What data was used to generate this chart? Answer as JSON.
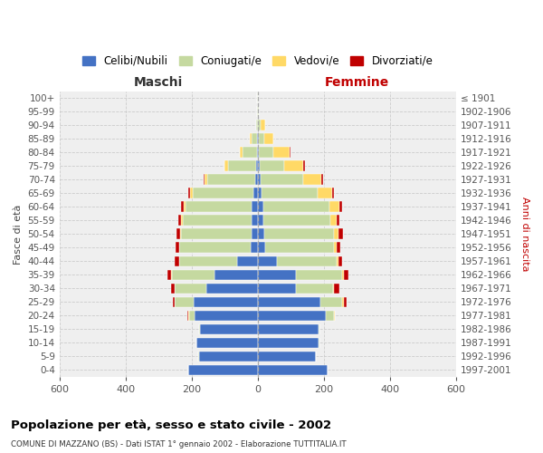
{
  "age_groups": [
    "0-4",
    "5-9",
    "10-14",
    "15-19",
    "20-24",
    "25-29",
    "30-34",
    "35-39",
    "40-44",
    "45-49",
    "50-54",
    "55-59",
    "60-64",
    "65-69",
    "70-74",
    "75-79",
    "80-84",
    "85-89",
    "90-94",
    "95-99",
    "100+"
  ],
  "birth_years": [
    "1997-2001",
    "1992-1996",
    "1987-1991",
    "1982-1986",
    "1977-1981",
    "1972-1976",
    "1967-1971",
    "1962-1966",
    "1957-1961",
    "1952-1956",
    "1947-1951",
    "1942-1946",
    "1937-1941",
    "1932-1936",
    "1927-1931",
    "1922-1926",
    "1917-1921",
    "1912-1916",
    "1907-1911",
    "1902-1906",
    "≤ 1901"
  ],
  "males_celibi": [
    210,
    178,
    185,
    175,
    190,
    195,
    155,
    130,
    62,
    22,
    18,
    18,
    18,
    12,
    8,
    5,
    3,
    2,
    0,
    0,
    0
  ],
  "males_coniugati": [
    0,
    2,
    2,
    2,
    18,
    55,
    95,
    130,
    175,
    215,
    215,
    210,
    200,
    185,
    145,
    85,
    42,
    18,
    4,
    1,
    1
  ],
  "males_vedovi": [
    0,
    0,
    0,
    0,
    2,
    2,
    2,
    2,
    2,
    2,
    2,
    4,
    5,
    8,
    8,
    10,
    10,
    5,
    2,
    0,
    0
  ],
  "males_divorziati": [
    0,
    0,
    0,
    0,
    2,
    5,
    10,
    10,
    12,
    10,
    10,
    8,
    8,
    5,
    2,
    2,
    0,
    0,
    0,
    0,
    0
  ],
  "females_nubili": [
    210,
    175,
    185,
    185,
    205,
    190,
    115,
    115,
    58,
    22,
    20,
    18,
    18,
    12,
    8,
    5,
    2,
    2,
    0,
    0,
    0
  ],
  "females_coniugate": [
    0,
    2,
    2,
    2,
    25,
    65,
    112,
    140,
    180,
    208,
    210,
    202,
    198,
    168,
    130,
    75,
    45,
    18,
    8,
    2,
    1
  ],
  "females_vedove": [
    0,
    0,
    0,
    0,
    2,
    5,
    3,
    5,
    5,
    8,
    15,
    20,
    30,
    45,
    55,
    58,
    50,
    28,
    15,
    2,
    0
  ],
  "females_divorziate": [
    0,
    0,
    0,
    0,
    2,
    10,
    18,
    14,
    12,
    12,
    12,
    8,
    10,
    5,
    5,
    5,
    2,
    0,
    0,
    0,
    0
  ],
  "colors": {
    "celibi": "#4472C4",
    "coniugati": "#c5d9a0",
    "vedovi": "#FFD966",
    "divorziati": "#C00000"
  },
  "xlim": 600,
  "title": "Popolazione per età, sesso e stato civile - 2002",
  "subtitle": "COMUNE DI MAZZANO (BS) - Dati ISTAT 1° gennaio 2002 - Elaborazione TUTTITALIA.IT",
  "xlabel_left": "Maschi",
  "xlabel_right": "Femmine",
  "ylabel_left": "Fasce di età",
  "ylabel_right": "Anni di nascita",
  "legend_labels": [
    "Celibi/Nubili",
    "Coniugati/e",
    "Vedovi/e",
    "Divorziati/e"
  ],
  "bg_color": "#ffffff",
  "plot_bg_color": "#efefef"
}
